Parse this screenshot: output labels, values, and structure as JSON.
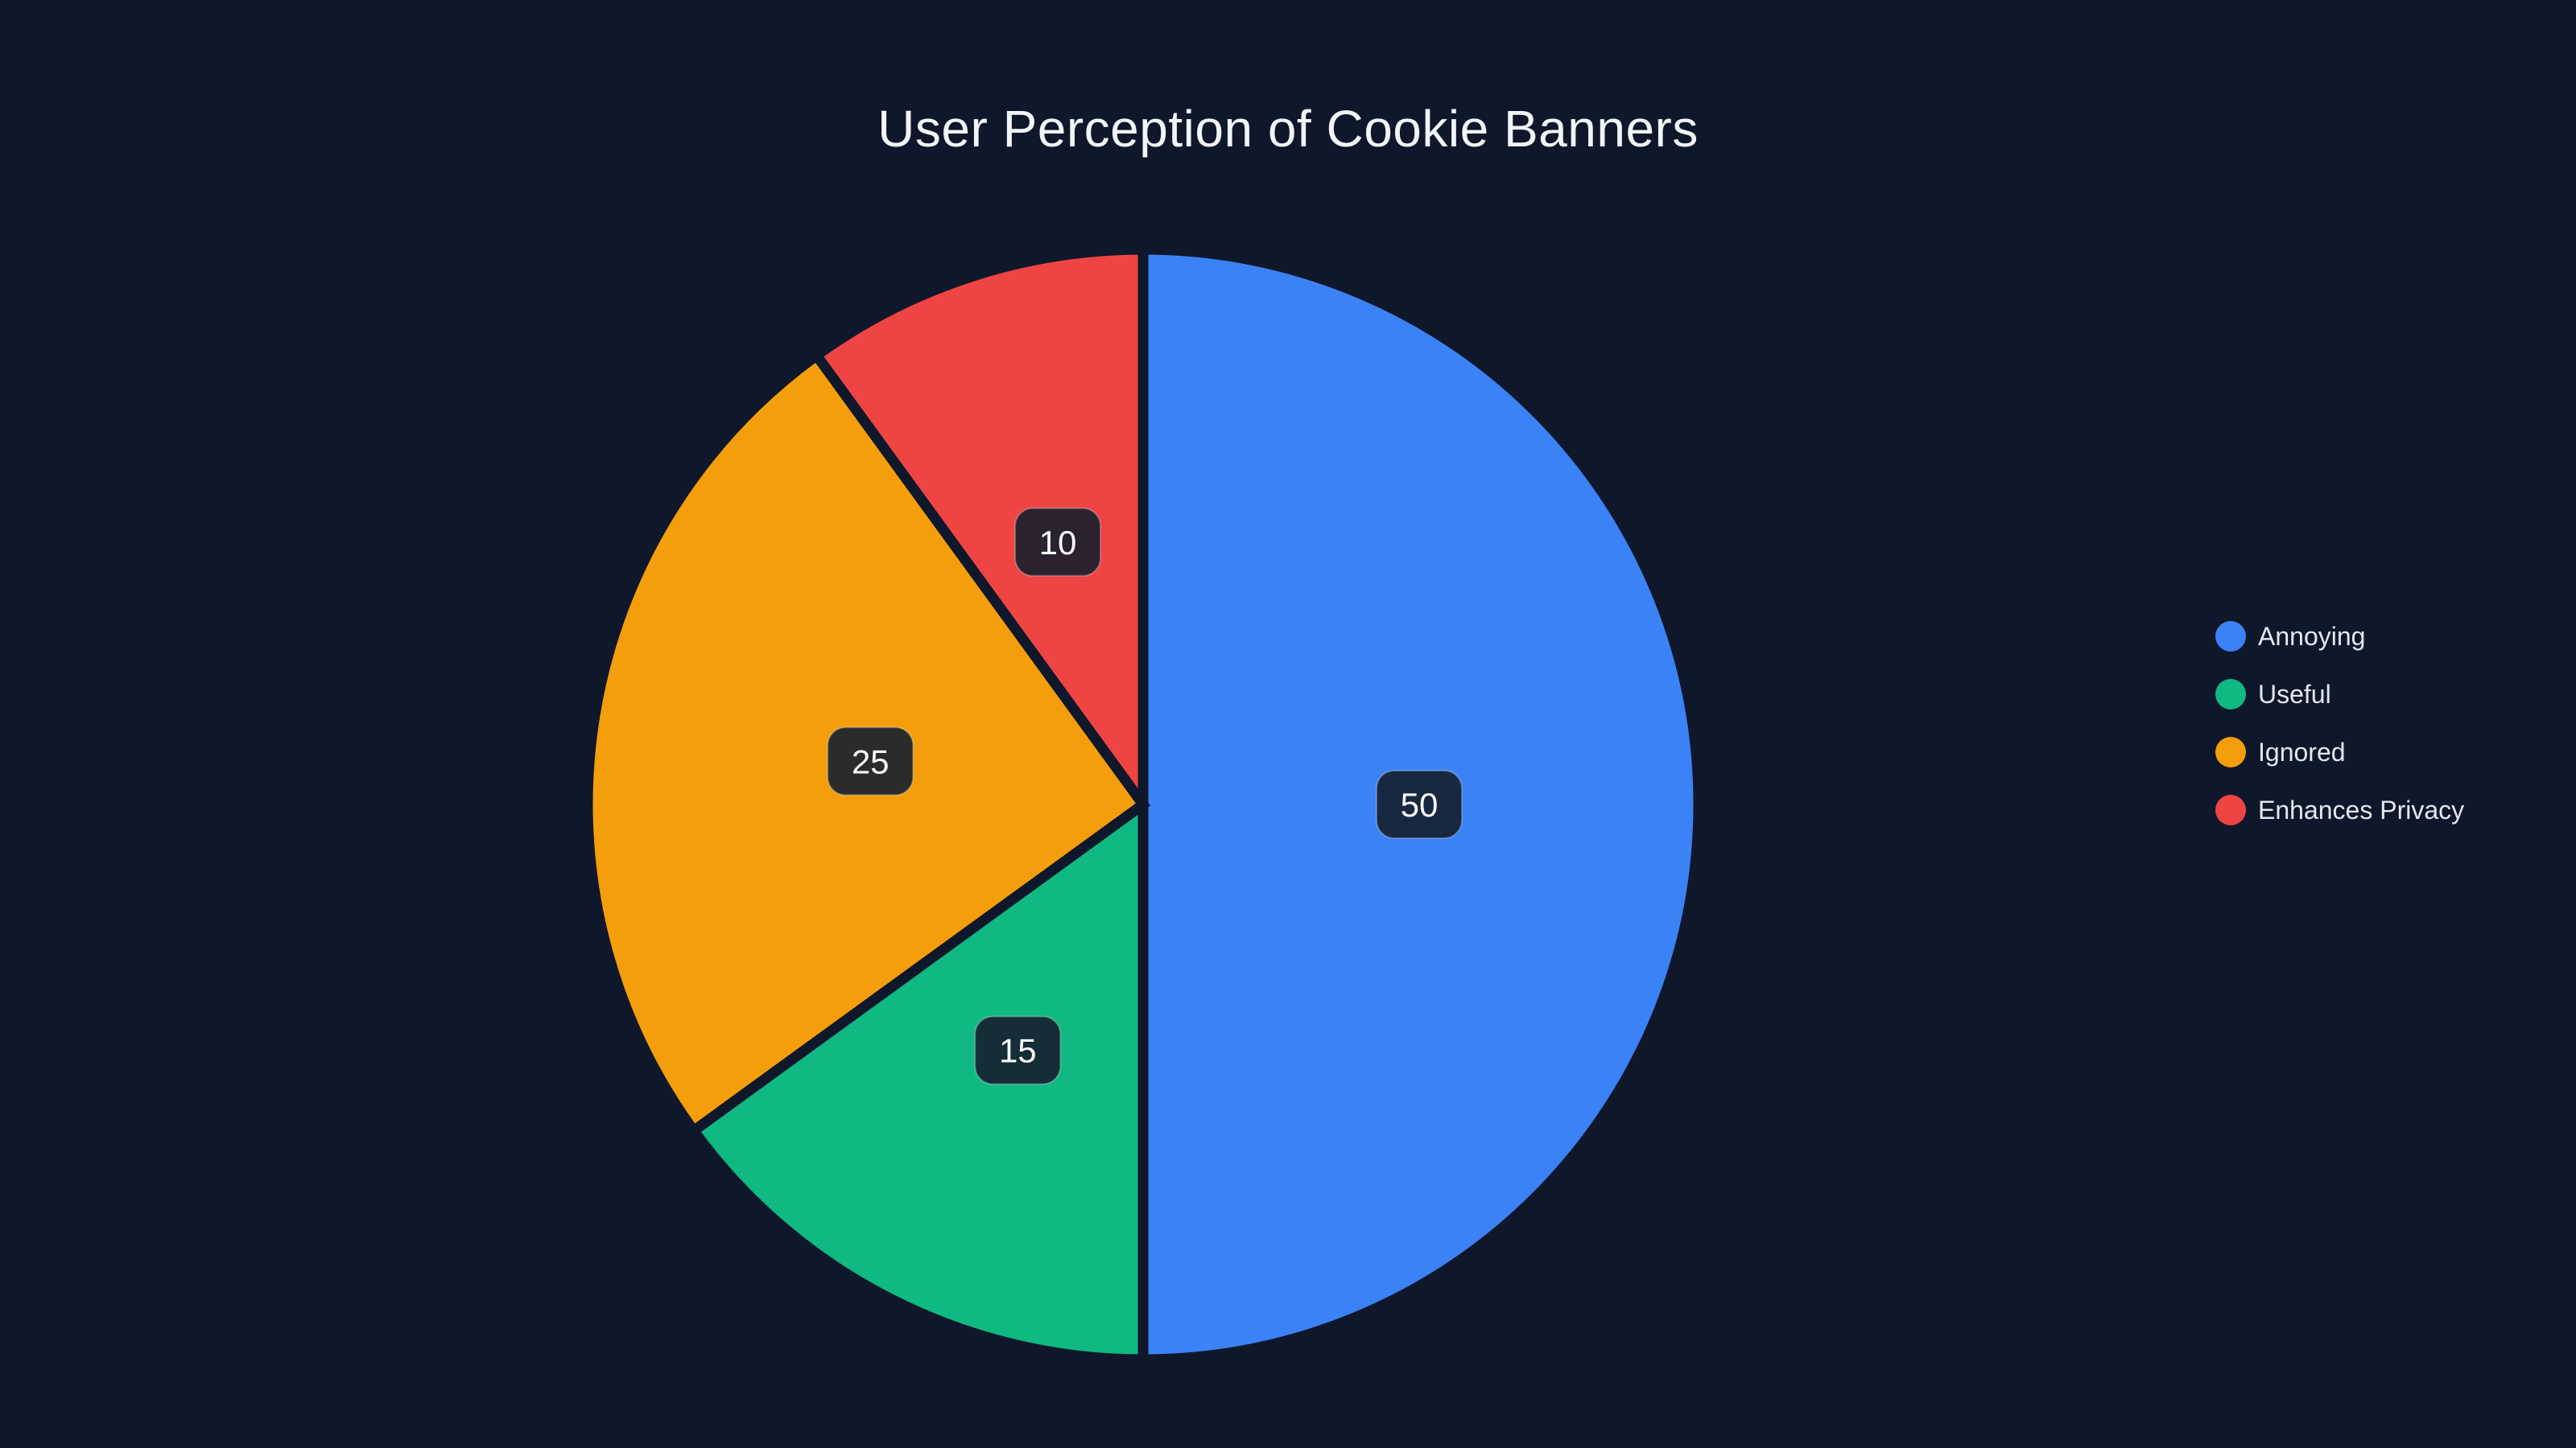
{
  "page": {
    "background_color": "#0f172a"
  },
  "chart_data": {
    "type": "pie",
    "title": "User Perception of Cookie Banners",
    "total": 100,
    "slices": [
      {
        "label": "Annoying",
        "value": 50,
        "color": "#3b82f6"
      },
      {
        "label": "Useful",
        "value": 15,
        "color": "#10b981"
      },
      {
        "label": "Ignored",
        "value": 25,
        "color": "#f59e0b"
      },
      {
        "label": "Enhances Privacy",
        "value": 10,
        "color": "#ef4444"
      }
    ],
    "layout": {
      "direction": "clockwise",
      "start_angle": "12-o-clock",
      "slice_gap_color": "#0f172a",
      "legend_position": "right",
      "value_labels": "raw values in rounded dark badges at half radius",
      "value_label_bg": "rgba(21,30,46,0.9)",
      "value_label_border": "rgba(220,228,240,0.3)",
      "value_label_text_color": "#f8fafc",
      "legend_text_color": "#e2e8f0",
      "title_text_color": "#f1f5f9"
    }
  }
}
